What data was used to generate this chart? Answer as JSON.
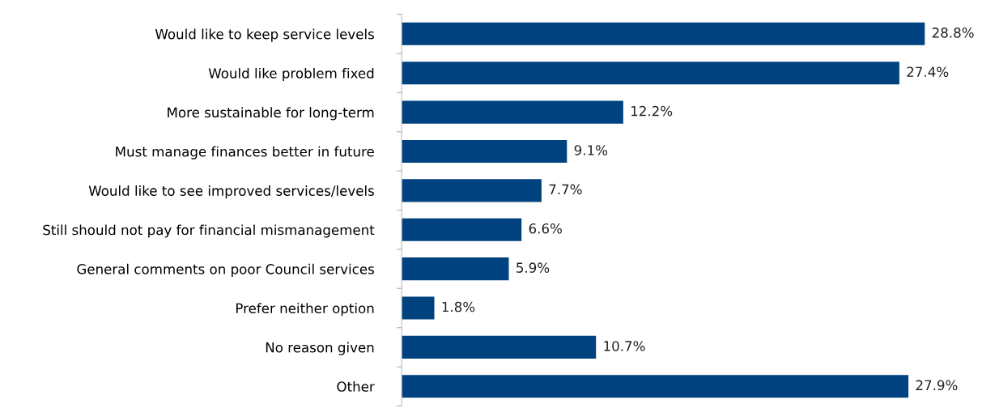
{
  "chart_data": {
    "type": "bar",
    "orientation": "horizontal",
    "categories": [
      "Would like to keep service levels",
      "Would like problem fixed",
      "More sustainable for long-term",
      "Must manage finances better in future",
      "Would like to see improved services/levels",
      "Still should not pay for financial mismanagement",
      "General comments on poor Council services",
      "Prefer neither option",
      "No reason given",
      "Other"
    ],
    "values": [
      28.8,
      27.4,
      12.2,
      9.1,
      7.7,
      6.6,
      5.9,
      1.8,
      10.7,
      27.9
    ],
    "value_labels": [
      "28.8%",
      "27.4%",
      "12.2%",
      "9.1%",
      "7.7%",
      "6.6%",
      "5.9%",
      "1.8%",
      "10.7%",
      "27.9%"
    ],
    "color": "#00427f",
    "grid": false,
    "legend": false,
    "tick_labels": "y"
  }
}
